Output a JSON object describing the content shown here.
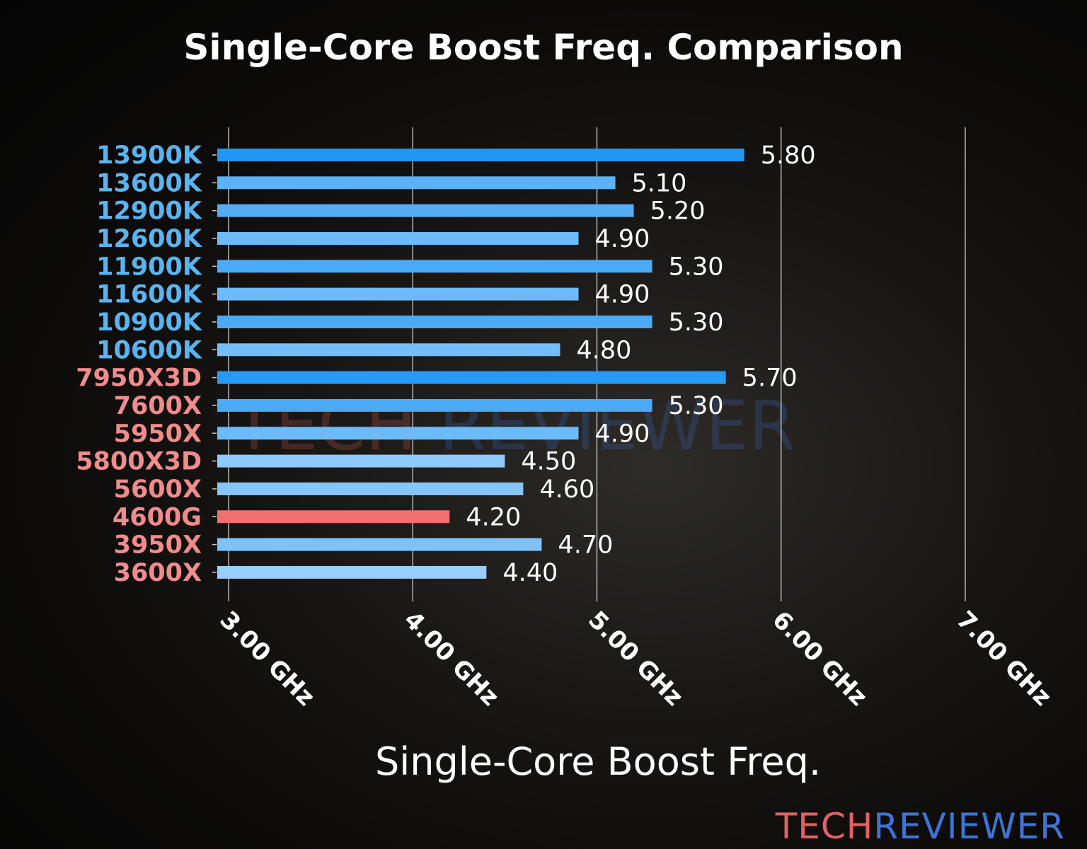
{
  "chart_data": {
    "type": "bar",
    "orientation": "horizontal",
    "title": "Single-Core Boost Freq. Comparison",
    "xlabel": "Single-Core Boost Freq.",
    "ylabel": "",
    "xlim": [
      3.0,
      7.0
    ],
    "xticks": [
      "3.00 GHz",
      "4.00 GHz",
      "5.00 GHz",
      "6.00 GHz",
      "7.00 GHz"
    ],
    "xtick_values": [
      3,
      4,
      5,
      6,
      7
    ],
    "grid": "vertical",
    "categories": [
      "13900K",
      "13600K",
      "12900K",
      "12600K",
      "11900K",
      "11600K",
      "10900K",
      "10600K",
      "7950X3D",
      "7600X",
      "5950X",
      "5800X3D",
      "5600X",
      "4600G",
      "3950X",
      "3600X"
    ],
    "values": [
      5.8,
      5.1,
      5.2,
      4.9,
      5.3,
      4.9,
      5.3,
      4.8,
      5.7,
      5.3,
      4.9,
      4.5,
      4.6,
      4.2,
      4.7,
      4.4
    ],
    "data_labels": [
      "5.80",
      "5.10",
      "5.20",
      "4.90",
      "5.30",
      "4.90",
      "5.30",
      "4.80",
      "5.70",
      "5.30",
      "4.90",
      "4.50",
      "4.60",
      "4.20",
      "4.70",
      "4.40"
    ],
    "highlighted": "4600G",
    "colors": {
      "intel_label": "#5ab4f0",
      "amd_label": "#f08c8c",
      "bar_high": "#2196f3",
      "bar_low": "#a8d6fc",
      "highlight": "#f07070"
    },
    "label_groups": {
      "intel": [
        "13900K",
        "13600K",
        "12900K",
        "12600K",
        "11900K",
        "11600K",
        "10900K",
        "10600K"
      ],
      "amd": [
        "7950X3D",
        "7600X",
        "5950X",
        "5800X3D",
        "5600X",
        "4600G",
        "3950X",
        "3600X"
      ]
    }
  },
  "logo": {
    "part1": "TECH",
    "part2": "REVIEWER",
    "color1": "#e06262",
    "color2": "#3f74d6"
  }
}
